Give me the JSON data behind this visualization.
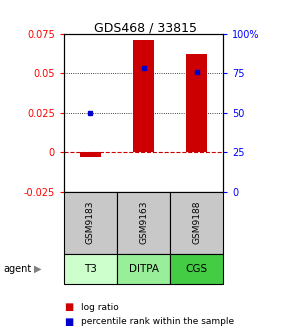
{
  "title": "GDS468 / 33815",
  "samples": [
    "GSM9183",
    "GSM9163",
    "GSM9188"
  ],
  "agents": [
    "T3",
    "DITPA",
    "CGS"
  ],
  "log_ratios": [
    -0.003,
    0.071,
    0.062
  ],
  "percentile_ranks": [
    50,
    78,
    76
  ],
  "ylim_left": [
    -0.025,
    0.075
  ],
  "ylim_right": [
    0,
    100
  ],
  "yticks_left": [
    -0.025,
    0,
    0.025,
    0.05,
    0.075
  ],
  "ytick_labels_left": [
    "-0.025",
    "0",
    "0.025",
    "0.05",
    "0.075"
  ],
  "yticks_right": [
    0,
    25,
    50,
    75,
    100
  ],
  "ytick_labels_right": [
    "0",
    "25",
    "50",
    "75",
    "100%"
  ],
  "bar_color": "#cc0000",
  "dot_color": "#0000cc",
  "zero_line_color": "#cc0000",
  "agent_colors": [
    "#ccffcc",
    "#99ee99",
    "#44cc44"
  ],
  "sample_bg_color": "#c8c8c8",
  "legend_log_color": "#cc0000",
  "legend_pct_color": "#0000cc",
  "title_fontsize": 9,
  "tick_fontsize": 7,
  "label_fontsize": 7
}
